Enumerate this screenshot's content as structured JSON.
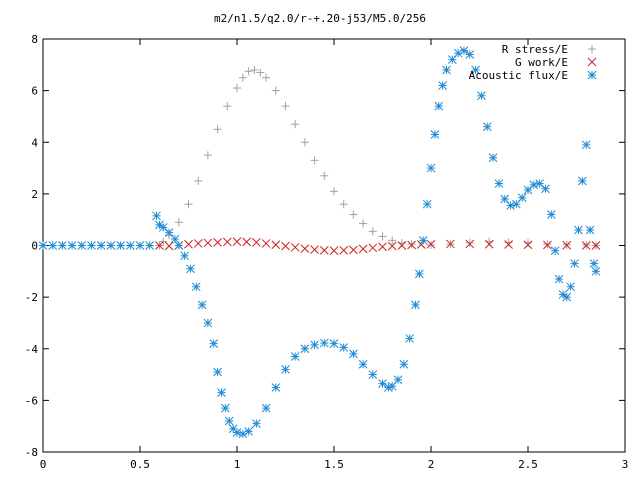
{
  "chart_data": {
    "type": "scatter",
    "title": "m2/n1.5/q2.0/r-+.20-j53/M5.0/256",
    "xlabel": "",
    "ylabel": "",
    "xlim": [
      0,
      3
    ],
    "ylim": [
      -8,
      8
    ],
    "x_ticks": [
      0,
      0.5,
      1,
      1.5,
      2,
      2.5,
      3
    ],
    "x_tick_labels": [
      "0",
      "0.5",
      "1",
      "1.5",
      "2",
      "2.5",
      "3"
    ],
    "y_ticks": [
      -8,
      -6,
      -4,
      -2,
      0,
      2,
      4,
      6,
      8
    ],
    "y_tick_labels": [
      "-8",
      "-6",
      "-4",
      "-2",
      "0",
      "2",
      "4",
      "6",
      "8"
    ],
    "grid": false,
    "legend_position": "top-right",
    "series": [
      {
        "name": "R stress/E",
        "marker": "plus",
        "color": "#a0a0a0",
        "points": [
          [
            0.6,
            0.0
          ],
          [
            0.62,
            0.15
          ],
          [
            0.65,
            0.4
          ],
          [
            0.7,
            0.9
          ],
          [
            0.75,
            1.6
          ],
          [
            0.8,
            2.5
          ],
          [
            0.85,
            3.5
          ],
          [
            0.9,
            4.5
          ],
          [
            0.95,
            5.4
          ],
          [
            1.0,
            6.1
          ],
          [
            1.03,
            6.5
          ],
          [
            1.06,
            6.75
          ],
          [
            1.09,
            6.8
          ],
          [
            1.12,
            6.7
          ],
          [
            1.15,
            6.5
          ],
          [
            1.2,
            6.0
          ],
          [
            1.25,
            5.4
          ],
          [
            1.3,
            4.7
          ],
          [
            1.35,
            4.0
          ],
          [
            1.4,
            3.3
          ],
          [
            1.45,
            2.7
          ],
          [
            1.5,
            2.1
          ],
          [
            1.55,
            1.6
          ],
          [
            1.6,
            1.2
          ],
          [
            1.65,
            0.85
          ],
          [
            1.7,
            0.55
          ],
          [
            1.75,
            0.35
          ],
          [
            1.8,
            0.2
          ],
          [
            1.85,
            0.1
          ],
          [
            1.9,
            0.05
          ],
          [
            2.0,
            0.02
          ],
          [
            2.1,
            0.05
          ],
          [
            2.2,
            0.1
          ],
          [
            2.3,
            0.15
          ],
          [
            2.4,
            0.12
          ],
          [
            2.5,
            0.1
          ],
          [
            2.6,
            0.05
          ],
          [
            2.7,
            0.03
          ],
          [
            2.8,
            0.02
          ],
          [
            2.85,
            0.0
          ]
        ]
      },
      {
        "name": "G work/E",
        "marker": "cross",
        "color": "#d02020",
        "points": [
          [
            0.6,
            0.0
          ],
          [
            0.65,
            -0.02
          ],
          [
            0.7,
            0.0
          ],
          [
            0.75,
            0.05
          ],
          [
            0.8,
            0.08
          ],
          [
            0.85,
            0.1
          ],
          [
            0.9,
            0.12
          ],
          [
            0.95,
            0.14
          ],
          [
            1.0,
            0.15
          ],
          [
            1.05,
            0.14
          ],
          [
            1.1,
            0.12
          ],
          [
            1.15,
            0.08
          ],
          [
            1.2,
            0.03
          ],
          [
            1.25,
            -0.02
          ],
          [
            1.3,
            -0.07
          ],
          [
            1.35,
            -0.12
          ],
          [
            1.4,
            -0.16
          ],
          [
            1.45,
            -0.19
          ],
          [
            1.5,
            -0.2
          ],
          [
            1.55,
            -0.19
          ],
          [
            1.6,
            -0.17
          ],
          [
            1.65,
            -0.13
          ],
          [
            1.7,
            -0.09
          ],
          [
            1.75,
            -0.05
          ],
          [
            1.8,
            -0.02
          ],
          [
            1.85,
            0.0
          ],
          [
            1.9,
            0.02
          ],
          [
            1.95,
            0.04
          ],
          [
            2.0,
            0.05
          ],
          [
            2.1,
            0.06
          ],
          [
            2.2,
            0.06
          ],
          [
            2.3,
            0.05
          ],
          [
            2.4,
            0.04
          ],
          [
            2.5,
            0.03
          ],
          [
            2.6,
            0.02
          ],
          [
            2.7,
            0.01
          ],
          [
            2.8,
            0.0
          ],
          [
            2.85,
            0.0
          ]
        ]
      },
      {
        "name": "Acoustic flux/E",
        "marker": "star",
        "color": "#1e8ad6",
        "points": [
          [
            0.0,
            0.0
          ],
          [
            0.05,
            0.0
          ],
          [
            0.1,
            0.0
          ],
          [
            0.15,
            0.0
          ],
          [
            0.2,
            0.0
          ],
          [
            0.25,
            0.0
          ],
          [
            0.3,
            0.0
          ],
          [
            0.35,
            0.0
          ],
          [
            0.4,
            0.0
          ],
          [
            0.45,
            0.0
          ],
          [
            0.5,
            0.0
          ],
          [
            0.55,
            0.0
          ],
          [
            0.585,
            1.15
          ],
          [
            0.6,
            0.8
          ],
          [
            0.62,
            0.7
          ],
          [
            0.65,
            0.5
          ],
          [
            0.68,
            0.25
          ],
          [
            0.7,
            0.0
          ],
          [
            0.73,
            -0.4
          ],
          [
            0.76,
            -0.9
          ],
          [
            0.79,
            -1.6
          ],
          [
            0.82,
            -2.3
          ],
          [
            0.85,
            -3.0
          ],
          [
            0.88,
            -3.8
          ],
          [
            0.9,
            -4.9
          ],
          [
            0.92,
            -5.7
          ],
          [
            0.94,
            -6.3
          ],
          [
            0.96,
            -6.8
          ],
          [
            0.98,
            -7.1
          ],
          [
            1.0,
            -7.25
          ],
          [
            1.03,
            -7.3
          ],
          [
            1.06,
            -7.2
          ],
          [
            1.1,
            -6.9
          ],
          [
            1.15,
            -6.3
          ],
          [
            1.2,
            -5.5
          ],
          [
            1.25,
            -4.8
          ],
          [
            1.3,
            -4.3
          ],
          [
            1.35,
            -4.0
          ],
          [
            1.4,
            -3.85
          ],
          [
            1.45,
            -3.78
          ],
          [
            1.5,
            -3.8
          ],
          [
            1.55,
            -3.95
          ],
          [
            1.6,
            -4.2
          ],
          [
            1.65,
            -4.6
          ],
          [
            1.7,
            -5.0
          ],
          [
            1.75,
            -5.35
          ],
          [
            1.78,
            -5.5
          ],
          [
            1.8,
            -5.45
          ],
          [
            1.83,
            -5.2
          ],
          [
            1.86,
            -4.6
          ],
          [
            1.89,
            -3.6
          ],
          [
            1.92,
            -2.3
          ],
          [
            1.94,
            -1.1
          ],
          [
            1.96,
            0.2
          ],
          [
            1.98,
            1.6
          ],
          [
            2.0,
            3.0
          ],
          [
            2.02,
            4.3
          ],
          [
            2.04,
            5.4
          ],
          [
            2.06,
            6.2
          ],
          [
            2.08,
            6.8
          ],
          [
            2.11,
            7.2
          ],
          [
            2.14,
            7.45
          ],
          [
            2.17,
            7.55
          ],
          [
            2.2,
            7.4
          ],
          [
            2.23,
            6.8
          ],
          [
            2.26,
            5.8
          ],
          [
            2.29,
            4.6
          ],
          [
            2.32,
            3.4
          ],
          [
            2.35,
            2.4
          ],
          [
            2.38,
            1.8
          ],
          [
            2.41,
            1.55
          ],
          [
            2.44,
            1.6
          ],
          [
            2.47,
            1.85
          ],
          [
            2.5,
            2.15
          ],
          [
            2.53,
            2.35
          ],
          [
            2.56,
            2.4
          ],
          [
            2.59,
            2.2
          ],
          [
            2.62,
            1.2
          ],
          [
            2.64,
            -0.2
          ],
          [
            2.66,
            -1.3
          ],
          [
            2.68,
            -1.9
          ],
          [
            2.7,
            -2.0
          ],
          [
            2.72,
            -1.6
          ],
          [
            2.74,
            -0.7
          ],
          [
            2.76,
            0.6
          ],
          [
            2.78,
            2.5
          ],
          [
            2.8,
            3.9
          ],
          [
            2.82,
            0.6
          ],
          [
            2.84,
            -0.7
          ],
          [
            2.85,
            -1.0
          ]
        ]
      }
    ]
  }
}
